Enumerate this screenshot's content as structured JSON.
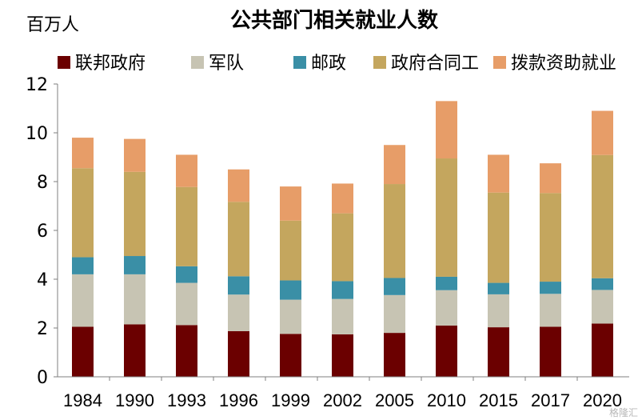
{
  "chart_data": {
    "type": "bar",
    "stacked": true,
    "title": "公共部门相关就业人数",
    "ylabel": "百万人",
    "xlabel": "",
    "ylim": [
      0,
      12
    ],
    "yticks": [
      0,
      2,
      4,
      6,
      8,
      10,
      12
    ],
    "categories": [
      "1984",
      "1990",
      "1993",
      "1996",
      "1999",
      "2002",
      "2005",
      "2010",
      "2015",
      "2017",
      "2020"
    ],
    "series": [
      {
        "name": "联邦政府",
        "color": "#6b0000",
        "values": [
          2.05,
          2.15,
          2.12,
          1.87,
          1.76,
          1.74,
          1.8,
          2.1,
          2.03,
          2.05,
          2.18
        ]
      },
      {
        "name": "军队",
        "color": "#c7c4b3",
        "values": [
          2.15,
          2.05,
          1.73,
          1.5,
          1.4,
          1.45,
          1.55,
          1.45,
          1.35,
          1.35,
          1.38
        ]
      },
      {
        "name": "邮政",
        "color": "#3a8fa6",
        "values": [
          0.7,
          0.75,
          0.68,
          0.75,
          0.79,
          0.73,
          0.7,
          0.55,
          0.47,
          0.5,
          0.48
        ]
      },
      {
        "name": "政府合同工",
        "color": "#c4a65e",
        "values": [
          3.65,
          3.45,
          3.25,
          3.05,
          2.45,
          2.78,
          3.85,
          4.85,
          3.7,
          3.63,
          5.05
        ]
      },
      {
        "name": "拨款资助就业",
        "color": "#e79d68",
        "values": [
          1.25,
          1.35,
          1.32,
          1.33,
          1.4,
          1.22,
          1.6,
          2.35,
          1.55,
          1.22,
          1.81
        ]
      }
    ],
    "gridlines": false,
    "legend_position": "top"
  },
  "watermark": "格隆汇"
}
